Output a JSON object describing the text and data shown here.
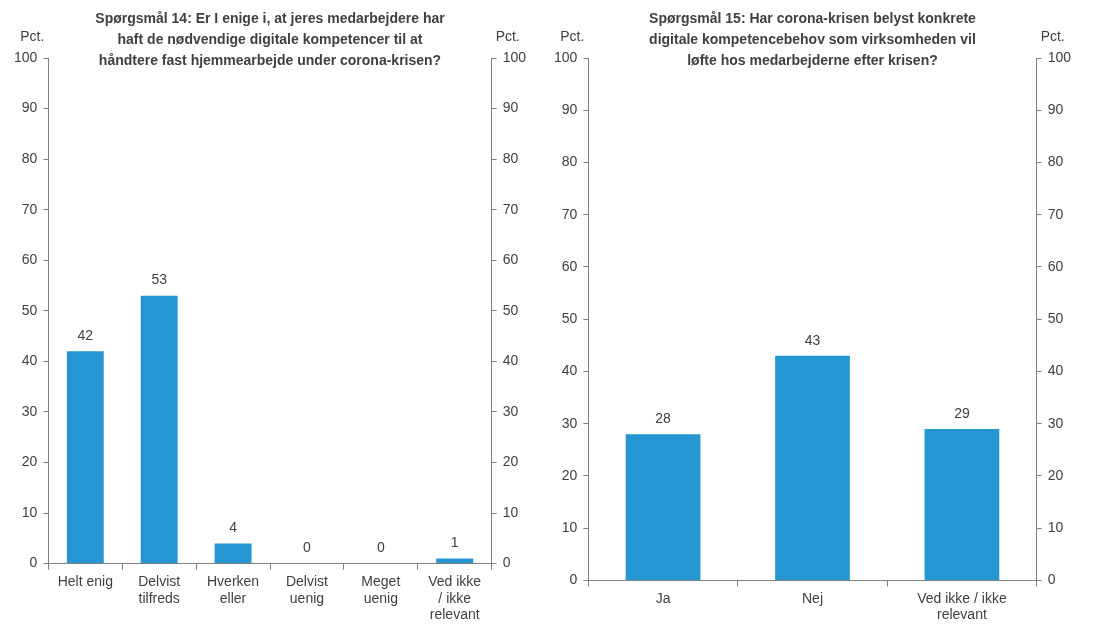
{
  "chart_data": [
    {
      "type": "bar",
      "title": "Spørgsmål 14: Er I enige i, at jeres medarbejdere har haft de nødvendige digitale kompetencer til at håndtere fast hjemmearbejde  under corona-krisen?",
      "ylabel": "Pct.",
      "y2label": "Pct.",
      "categories": [
        "Helt enig",
        "Delvist tilfreds",
        "Hverken eller",
        "Delvist uenig",
        "Meget uenig",
        "Ved ikke / ikke relevant"
      ],
      "values": [
        42,
        53,
        4,
        0,
        0,
        1
      ],
      "color": "#2596d1",
      "ylim": [
        0,
        100
      ],
      "yticks": [
        0,
        10,
        20,
        30,
        40,
        50,
        60,
        70,
        80,
        90,
        100
      ],
      "y2lim": [
        0,
        100
      ],
      "y2ticks": [
        0,
        10,
        20,
        30,
        40,
        50,
        60,
        70,
        80,
        90,
        100
      ],
      "data_labels": true,
      "grid": false,
      "legend": false
    },
    {
      "type": "bar",
      "title": "Spørgsmål 15: Har corona-krisen belyst konkrete digitale kompetencebehov  som virksomheden vil løfte hos medarbejderne efter krisen?",
      "ylabel": "Pct.",
      "y2label": "Pct.",
      "categories": [
        "Ja",
        "Nej",
        "Ved ikke / ikke relevant"
      ],
      "values": [
        28,
        43,
        29
      ],
      "color": "#2596d1",
      "ylim": [
        0,
        100
      ],
      "yticks": [
        0,
        10,
        20,
        30,
        40,
        50,
        60,
        70,
        80,
        90,
        100
      ],
      "y2lim": [
        0,
        100
      ],
      "y2ticks": [
        0,
        10,
        20,
        30,
        40,
        50,
        60,
        70,
        80,
        90,
        100
      ],
      "data_labels": true,
      "grid": false,
      "legend": false
    }
  ]
}
